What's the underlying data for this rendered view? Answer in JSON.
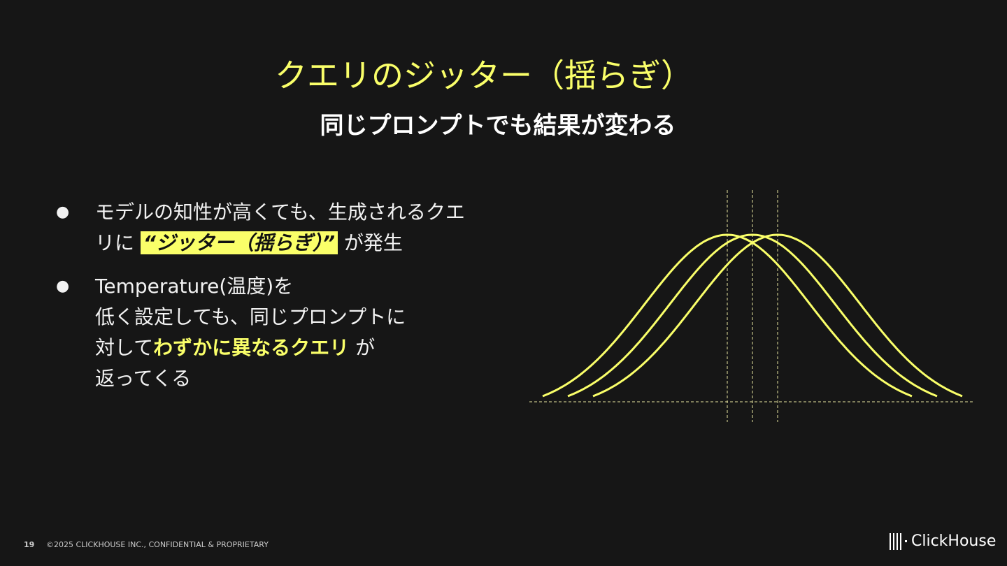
{
  "slide": {
    "title": "クエリのジッター（揺らぎ）",
    "subtitle": "同じプロンプトでも結果が変わる",
    "bullets": [
      {
        "line1": "モデルの知性が高くても、生成されるクエ",
        "line2_pre": "リに ",
        "highlight": "“ジッター（揺らぎ）”",
        "line2_post": " が発生"
      },
      {
        "line1": "Temperature(温度)を",
        "line2": "低く設定しても、同じプロンプトに",
        "line3_pre": "対して",
        "emphasis": "わずかに異なるクエリ",
        "line3_post": " が",
        "line4": "返ってくる"
      }
    ]
  },
  "figure": {
    "description_type": "three shifted bell curves",
    "curve_color": "#faff69",
    "guide_color": "#e8e6a0",
    "curve_count": 3
  },
  "footer": {
    "page_number": "19",
    "copyright": "©2025 CLICKHOUSE INC., CONFIDENTIAL & PROPRIETARY",
    "logo_text": "ClickHouse"
  },
  "colors": {
    "background": "#161616",
    "accent": "#faff69"
  }
}
